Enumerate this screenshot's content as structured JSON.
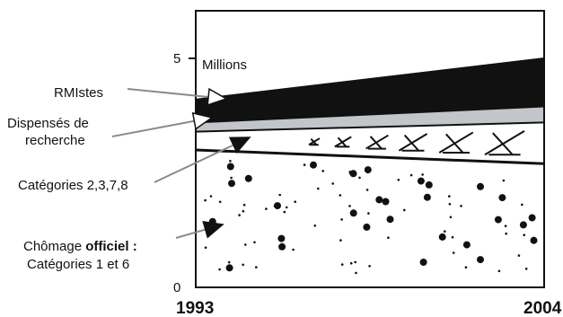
{
  "chart_data": {
    "type": "area",
    "title": "",
    "xlabel": "",
    "ylabel": "",
    "unit_label": "Millions",
    "x": [
      "1993",
      "2004"
    ],
    "xlim": [
      1993,
      2004
    ],
    "ylim": [
      0,
      5.8
    ],
    "y_ticks": [
      0,
      5
    ],
    "series": [
      {
        "name": "Chômage officiel : Catégories 1 et 6",
        "values": [
          3.0,
          2.7
        ],
        "pattern": "dots"
      },
      {
        "name": "Catégories 2,3,7,8",
        "values": [
          0.4,
          0.9
        ],
        "pattern": "crosses"
      },
      {
        "name": "Dispensés de recherche",
        "values": [
          0.2,
          0.35
        ],
        "pattern": "grey"
      },
      {
        "name": "RMIstes",
        "values": [
          0.5,
          1.05
        ],
        "pattern": "black"
      }
    ],
    "annotations": [
      {
        "series": 3,
        "lines": [
          "RMIstes"
        ]
      },
      {
        "series": 2,
        "lines": [
          "Dispensés de",
          "recherche"
        ]
      },
      {
        "series": 1,
        "lines": [
          "Catégories 2,3,7,8"
        ]
      },
      {
        "series": 0,
        "lines": [
          "Chômage",
          "officiel :",
          "Catégories 1 et 6"
        ]
      }
    ],
    "colors": {
      "black_band": "#111111",
      "grey_band": "#c2c5c9",
      "frame": "#111111",
      "pointer": "#8a8a8a"
    }
  }
}
